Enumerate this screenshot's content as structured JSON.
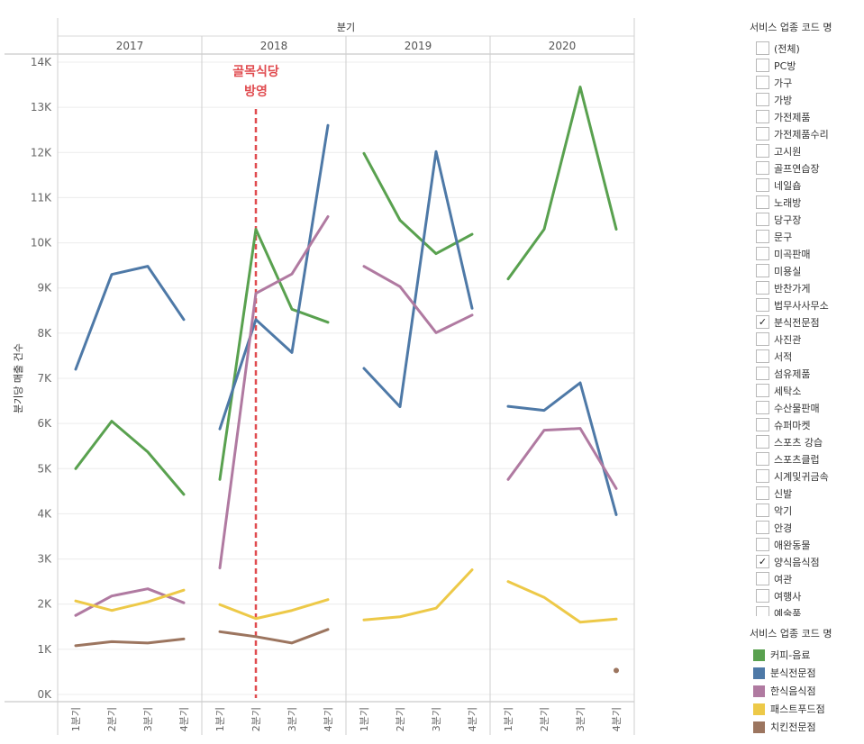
{
  "chart_data": {
    "type": "line",
    "column_header": "분기",
    "ylabel": "분기당 매출 건수",
    "ylim": [
      0,
      14000
    ],
    "y_ticks": [
      0,
      1000,
      2000,
      3000,
      4000,
      5000,
      6000,
      7000,
      8000,
      9000,
      10000,
      11000,
      12000,
      13000,
      14000
    ],
    "y_tick_labels": [
      "0K",
      "1K",
      "2K",
      "3K",
      "4K",
      "5K",
      "6K",
      "7K",
      "8K",
      "9K",
      "10K",
      "11K",
      "12K",
      "13K",
      "14K"
    ],
    "years": [
      "2017",
      "2018",
      "2019",
      "2020"
    ],
    "quarters": [
      "1분기",
      "2분기",
      "3분기",
      "4분기"
    ],
    "grid": true,
    "annotation": {
      "text_line1": "골목식당",
      "text_line2": "방영",
      "year_index": 1,
      "quarter_index": 1,
      "color": "#e04b4f"
    },
    "series": [
      {
        "name": "커피-음료",
        "color": "#59a14f",
        "values": [
          [
            5000,
            6050,
            5370,
            4430
          ],
          [
            4760,
            10300,
            8530,
            8240
          ],
          [
            11980,
            10500,
            9760,
            10190
          ],
          [
            9200,
            10300,
            13450,
            10300
          ]
        ]
      },
      {
        "name": "분식전문점",
        "color": "#4e79a7",
        "values": [
          [
            7200,
            9300,
            9480,
            8300
          ],
          [
            5880,
            8300,
            7570,
            12600
          ],
          [
            7220,
            6370,
            12020,
            8550
          ],
          [
            6380,
            6290,
            6900,
            3980
          ]
        ]
      },
      {
        "name": "한식음식점",
        "color": "#b07aa1",
        "values": [
          [
            1750,
            2180,
            2340,
            2030
          ],
          [
            2800,
            8880,
            9310,
            10580
          ],
          [
            9480,
            9030,
            8010,
            8400
          ],
          [
            4760,
            5850,
            5890,
            4560
          ]
        ]
      },
      {
        "name": "패스트푸드점",
        "color": "#edc948",
        "values": [
          [
            2070,
            1860,
            2050,
            2310
          ],
          [
            1990,
            1680,
            1860,
            2100
          ],
          [
            1650,
            1720,
            1910,
            2760
          ],
          [
            2500,
            2150,
            1600,
            1670
          ]
        ]
      },
      {
        "name": "치킨전문점",
        "color": "#9c755f",
        "values": [
          [
            1080,
            1170,
            1140,
            1230
          ],
          [
            1390,
            1280,
            1140,
            1440
          ],
          [
            null,
            null,
            null,
            null
          ],
          [
            null,
            null,
            null,
            530
          ]
        ]
      }
    ]
  },
  "filter": {
    "title": "서비스 업종 코드 명",
    "items": [
      {
        "label": "(전체)",
        "mark": ""
      },
      {
        "label": "PC방",
        "mark": ""
      },
      {
        "label": "가구",
        "mark": ""
      },
      {
        "label": "가방",
        "mark": ""
      },
      {
        "label": "가전제품",
        "mark": ""
      },
      {
        "label": "가전제품수리",
        "mark": ""
      },
      {
        "label": "고시원",
        "mark": ""
      },
      {
        "label": "골프연습장",
        "mark": ""
      },
      {
        "label": "네일숍",
        "mark": ""
      },
      {
        "label": "노래방",
        "mark": ""
      },
      {
        "label": "당구장",
        "mark": ""
      },
      {
        "label": "문구",
        "mark": ""
      },
      {
        "label": "미곡판매",
        "mark": ""
      },
      {
        "label": "미용실",
        "mark": ""
      },
      {
        "label": "반찬가게",
        "mark": ""
      },
      {
        "label": "법무사사무소",
        "mark": ""
      },
      {
        "label": "분식전문점",
        "mark": "✓"
      },
      {
        "label": "사진관",
        "mark": ""
      },
      {
        "label": "서적",
        "mark": ""
      },
      {
        "label": "섬유제품",
        "mark": ""
      },
      {
        "label": "세탁소",
        "mark": ""
      },
      {
        "label": "수산물판매",
        "mark": ""
      },
      {
        "label": "슈퍼마켓",
        "mark": ""
      },
      {
        "label": "스포츠 강습",
        "mark": ""
      },
      {
        "label": "스포츠클럽",
        "mark": ""
      },
      {
        "label": "시계및귀금속",
        "mark": ""
      },
      {
        "label": "신발",
        "mark": ""
      },
      {
        "label": "악기",
        "mark": ""
      },
      {
        "label": "안경",
        "mark": ""
      },
      {
        "label": "애완동물",
        "mark": ""
      },
      {
        "label": "양식음식점",
        "mark": "✓"
      },
      {
        "label": "여관",
        "mark": ""
      },
      {
        "label": "여행사",
        "mark": ""
      },
      {
        "label": "예술품",
        "mark": ""
      }
    ]
  },
  "legend": {
    "title": "서비스 업종 코드 명",
    "items": [
      {
        "label": "커피-음료",
        "color": "#59a14f"
      },
      {
        "label": "분식전문점",
        "color": "#4e79a7"
      },
      {
        "label": "한식음식점",
        "color": "#b07aa1"
      },
      {
        "label": "패스트푸드점",
        "color": "#edc948"
      },
      {
        "label": "치킨전문점",
        "color": "#9c755f"
      }
    ]
  }
}
